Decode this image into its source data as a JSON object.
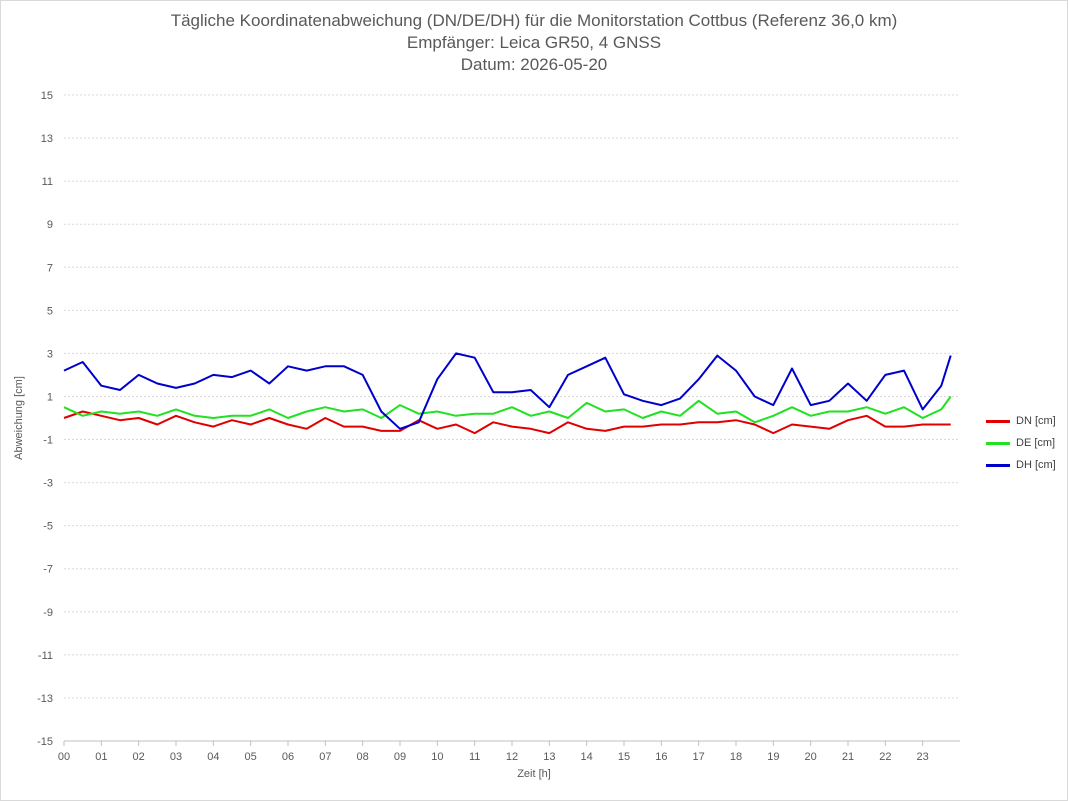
{
  "chart_data": {
    "type": "line",
    "title": "Tägliche Koordinatenabweichung (DN/DE/DH) für die Monitorstation Cottbus (Referenz 36,0 km)",
    "subtitle1": "Empfänger: Leica GR50, 4 GNSS",
    "subtitle2": "Datum: 2026-05-20",
    "xlabel": "Zeit [h]",
    "ylabel": "Abweichung [cm]",
    "xlim": [
      0,
      24
    ],
    "ylim": [
      -15,
      15
    ],
    "y_ticks": [
      -15,
      -13,
      -11,
      -9,
      -7,
      -5,
      -3,
      -1,
      1,
      3,
      5,
      7,
      9,
      11,
      13,
      15
    ],
    "x_tick_labels": [
      "00",
      "01",
      "02",
      "03",
      "04",
      "05",
      "06",
      "07",
      "08",
      "09",
      "10",
      "11",
      "12",
      "13",
      "14",
      "15",
      "16",
      "17",
      "18",
      "19",
      "20",
      "21",
      "22",
      "23"
    ],
    "grid": "horizontal dotted",
    "legend_position": "right",
    "x": [
      0,
      0.5,
      1,
      1.5,
      2,
      2.5,
      3,
      3.5,
      4,
      4.5,
      5,
      5.5,
      6,
      6.5,
      7,
      7.5,
      8,
      8.5,
      9,
      9.5,
      10,
      10.5,
      11,
      11.5,
      12,
      12.5,
      13,
      13.5,
      14,
      14.5,
      15,
      15.5,
      16,
      16.5,
      17,
      17.5,
      18,
      18.5,
      19,
      19.5,
      20,
      20.5,
      21,
      21.5,
      22,
      22.5,
      23,
      23.5,
      23.75
    ],
    "series": [
      {
        "name": "DN [cm]",
        "color": "#e00000",
        "values": [
          0.0,
          0.3,
          0.1,
          -0.1,
          0.0,
          -0.3,
          0.1,
          -0.2,
          -0.4,
          -0.1,
          -0.3,
          0.0,
          -0.3,
          -0.5,
          0.0,
          -0.4,
          -0.4,
          -0.6,
          -0.6,
          -0.1,
          -0.5,
          -0.3,
          -0.7,
          -0.2,
          -0.4,
          -0.5,
          -0.7,
          -0.2,
          -0.5,
          -0.6,
          -0.4,
          -0.4,
          -0.3,
          -0.3,
          -0.2,
          -0.2,
          -0.1,
          -0.3,
          -0.7,
          -0.3,
          -0.4,
          -0.5,
          -0.1,
          0.1,
          -0.4,
          -0.4,
          -0.3,
          -0.3,
          -0.3
        ]
      },
      {
        "name": "DE [cm]",
        "color": "#22e022",
        "values": [
          0.5,
          0.1,
          0.3,
          0.2,
          0.3,
          0.1,
          0.4,
          0.1,
          0.0,
          0.1,
          0.1,
          0.4,
          0.0,
          0.3,
          0.5,
          0.3,
          0.4,
          0.0,
          0.6,
          0.2,
          0.3,
          0.1,
          0.2,
          0.2,
          0.5,
          0.1,
          0.3,
          0.0,
          0.7,
          0.3,
          0.4,
          0.0,
          0.3,
          0.1,
          0.8,
          0.2,
          0.3,
          -0.2,
          0.1,
          0.5,
          0.1,
          0.3,
          0.3,
          0.5,
          0.2,
          0.5,
          0.0,
          0.4,
          1.0
        ]
      },
      {
        "name": "DH [cm]",
        "color": "#0000cc",
        "values": [
          2.2,
          2.6,
          1.5,
          1.3,
          2.0,
          1.6,
          1.4,
          1.6,
          2.0,
          1.9,
          2.2,
          1.6,
          2.4,
          2.2,
          2.4,
          2.4,
          2.0,
          0.3,
          -0.5,
          -0.2,
          1.8,
          3.0,
          2.8,
          1.2,
          1.2,
          1.3,
          0.5,
          2.0,
          2.4,
          2.8,
          1.1,
          0.8,
          0.6,
          0.9,
          1.8,
          2.9,
          2.2,
          1.0,
          0.6,
          2.3,
          0.6,
          0.8,
          1.6,
          0.8,
          2.0,
          2.2,
          0.4,
          1.5,
          2.9
        ]
      }
    ]
  }
}
